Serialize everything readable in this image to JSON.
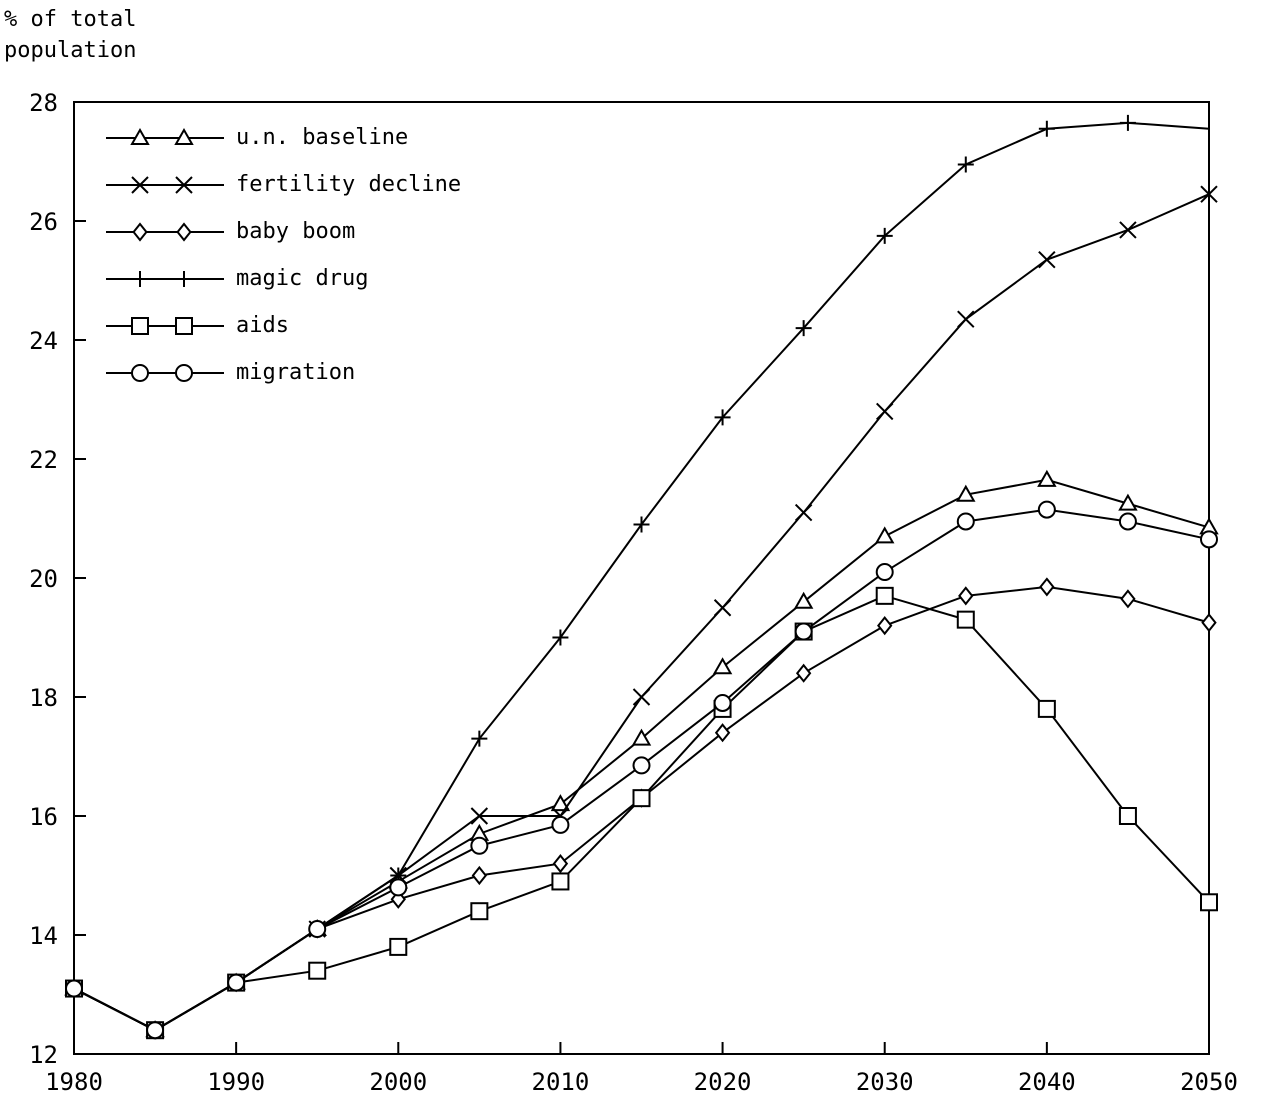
{
  "chart_data": {
    "type": "line",
    "ylabel": [
      "% of total",
      "population"
    ],
    "xlabel": "",
    "xlim": [
      1980,
      2050
    ],
    "ylim": [
      12,
      28
    ],
    "xticks": [
      1980,
      1990,
      2000,
      2010,
      2020,
      2030,
      2040,
      2050
    ],
    "yticks": [
      12,
      14,
      16,
      18,
      20,
      22,
      24,
      26,
      28
    ],
    "grid": false,
    "legend_position": "top-left",
    "series": [
      {
        "name": "u.n. baseline",
        "marker": "triangle",
        "x": [
          1980,
          1985,
          1990,
          1995,
          2000,
          2005,
          2010,
          2015,
          2020,
          2025,
          2030,
          2035,
          2040,
          2045,
          2050
        ],
        "y": [
          13.1,
          12.4,
          13.2,
          14.1,
          14.9,
          15.7,
          16.2,
          17.3,
          18.5,
          19.6,
          20.7,
          21.4,
          21.65,
          21.25,
          20.85
        ]
      },
      {
        "name": "fertility decline",
        "marker": "x",
        "x": [
          1980,
          1985,
          1990,
          1995,
          2000,
          2005,
          2010,
          2015,
          2020,
          2025,
          2030,
          2035,
          2040,
          2045,
          2050
        ],
        "y": [
          13.1,
          12.4,
          13.2,
          14.1,
          15.0,
          16.0,
          16.0,
          18.0,
          19.5,
          21.1,
          22.8,
          24.35,
          25.35,
          25.85,
          26.45
        ]
      },
      {
        "name": "baby boom",
        "marker": "diamond",
        "x": [
          1980,
          1985,
          1990,
          1995,
          2000,
          2005,
          2010,
          2015,
          2020,
          2025,
          2030,
          2035,
          2040,
          2045,
          2050
        ],
        "y": [
          13.1,
          12.4,
          13.2,
          14.1,
          14.6,
          15.0,
          15.2,
          16.3,
          17.4,
          18.4,
          19.2,
          19.7,
          19.85,
          19.65,
          19.25
        ]
      },
      {
        "name": "magic drug",
        "marker": "plus",
        "x": [
          1980,
          1985,
          1990,
          1995,
          2000,
          2005,
          2010,
          2015,
          2020,
          2025,
          2030,
          2035,
          2040,
          2045,
          2050
        ],
        "y": [
          13.1,
          12.4,
          13.2,
          14.1,
          15.0,
          17.3,
          19.0,
          20.9,
          22.7,
          24.2,
          25.75,
          26.95,
          27.55,
          27.65,
          27.55
        ]
      },
      {
        "name": "aids",
        "marker": "square",
        "x": [
          1980,
          1985,
          1990,
          1995,
          2000,
          2005,
          2010,
          2015,
          2020,
          2025,
          2030,
          2035,
          2040,
          2045,
          2050
        ],
        "y": [
          13.1,
          12.4,
          13.2,
          13.4,
          13.8,
          14.4,
          14.9,
          16.3,
          17.8,
          19.1,
          19.7,
          19.3,
          17.8,
          16.0,
          14.55
        ]
      },
      {
        "name": "migration",
        "marker": "circle",
        "x": [
          1980,
          1985,
          1990,
          1995,
          2000,
          2005,
          2010,
          2015,
          2020,
          2025,
          2030,
          2035,
          2040,
          2045,
          2050
        ],
        "y": [
          13.1,
          12.4,
          13.2,
          14.1,
          14.8,
          15.5,
          15.85,
          16.85,
          17.9,
          19.1,
          20.1,
          20.95,
          21.15,
          20.95,
          20.65
        ]
      }
    ]
  }
}
